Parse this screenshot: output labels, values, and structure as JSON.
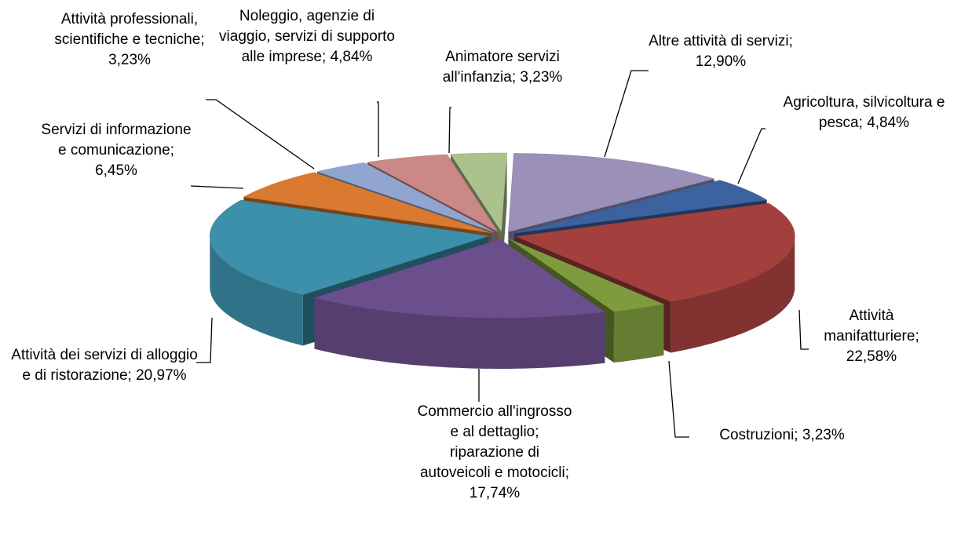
{
  "chart_data": {
    "type": "pie3d",
    "categories": [
      "Altre attività di servizi",
      "Agricoltura, silvicoltura e pesca",
      "Attività manifatturiere",
      "Costruzioni",
      "Commercio all'ingrosso e al dettaglio; riparazione di autoveicoli e motocicli",
      "Attività dei servizi di alloggio e di ristorazione",
      "Servizi di informazione e comunicazione",
      "Attività professionali, scientifiche e tecniche",
      "Noleggio, agenzie di viaggio, servizi di supporto alle imprese",
      "Animatore servizi all'infanzia"
    ],
    "values": [
      12.9,
      4.84,
      22.58,
      3.23,
      17.74,
      20.97,
      6.45,
      3.23,
      4.84,
      3.23
    ],
    "value_labels": [
      "12,90%",
      "4,84%",
      "22,58%",
      "3,23%",
      "17,74%",
      "20,97%",
      "6,45%",
      "3,23%",
      "4,84%",
      "3,23%"
    ],
    "label_separator": "; ",
    "colors": [
      "#9a90b8",
      "#3c62a0",
      "#a3403d",
      "#7e9c3e",
      "#6b4f8c",
      "#3c90aa",
      "#d97a30",
      "#90a6d0",
      "#ca8886",
      "#abc28c"
    ]
  }
}
